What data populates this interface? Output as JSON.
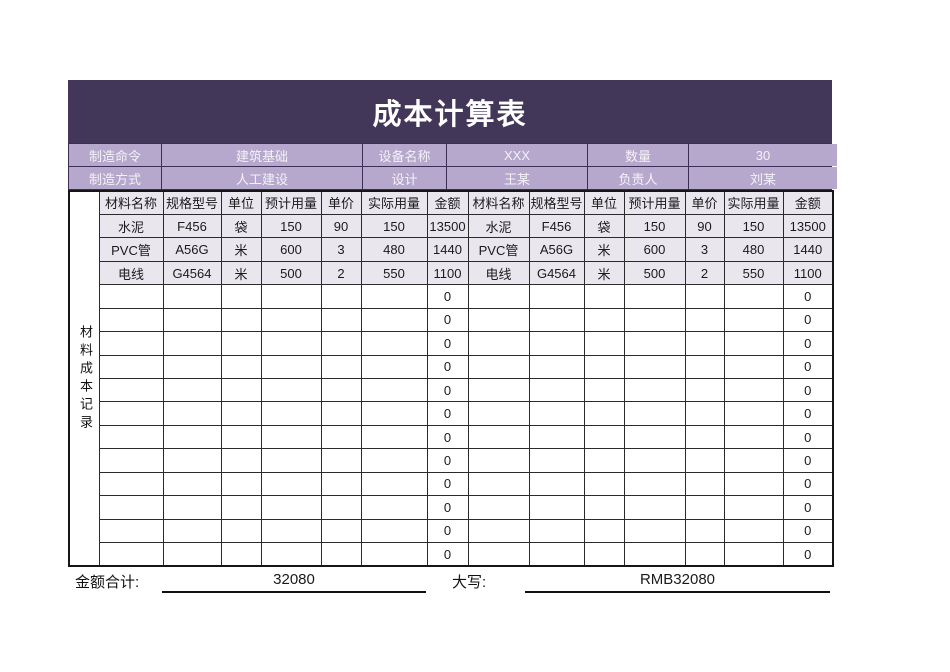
{
  "title": "成本计算表",
  "info": {
    "manufacture_order_label": "制造命令",
    "manufacture_order": "建筑基础",
    "equipment_name_label": "设备名称",
    "equipment_name": "XXX",
    "quantity_label": "数量",
    "quantity": "30",
    "manufacture_method_label": "制造方式",
    "manufacture_method": "人工建设",
    "design_label": "设计",
    "design": "王某",
    "manager_label": "负责人",
    "manager": "刘某"
  },
  "table": {
    "side_label": "材料成本记录",
    "columns": [
      "材料名称",
      "规格型号",
      "单位",
      "预计用量",
      "单价",
      "实际用量",
      "金额"
    ],
    "rows": [
      [
        "水泥",
        "F456",
        "袋",
        "150",
        "90",
        "150",
        "13500",
        "水泥",
        "F456",
        "袋",
        "150",
        "90",
        "150",
        "13500"
      ],
      [
        "PVC管",
        "A56G",
        "米",
        "600",
        "3",
        "480",
        "1440",
        "PVC管",
        "A56G",
        "米",
        "600",
        "3",
        "480",
        "1440"
      ],
      [
        "电线",
        "G4564",
        "米",
        "500",
        "2",
        "550",
        "1100",
        "电线",
        "G4564",
        "米",
        "500",
        "2",
        "550",
        "1100"
      ],
      [
        "",
        "",
        "",
        "",
        "",
        "",
        "0",
        "",
        "",
        "",
        "",
        "",
        "",
        "0"
      ],
      [
        "",
        "",
        "",
        "",
        "",
        "",
        "0",
        "",
        "",
        "",
        "",
        "",
        "",
        "0"
      ],
      [
        "",
        "",
        "",
        "",
        "",
        "",
        "0",
        "",
        "",
        "",
        "",
        "",
        "",
        "0"
      ],
      [
        "",
        "",
        "",
        "",
        "",
        "",
        "0",
        "",
        "",
        "",
        "",
        "",
        "",
        "0"
      ],
      [
        "",
        "",
        "",
        "",
        "",
        "",
        "0",
        "",
        "",
        "",
        "",
        "",
        "",
        "0"
      ],
      [
        "",
        "",
        "",
        "",
        "",
        "",
        "0",
        "",
        "",
        "",
        "",
        "",
        "",
        "0"
      ],
      [
        "",
        "",
        "",
        "",
        "",
        "",
        "0",
        "",
        "",
        "",
        "",
        "",
        "",
        "0"
      ],
      [
        "",
        "",
        "",
        "",
        "",
        "",
        "0",
        "",
        "",
        "",
        "",
        "",
        "",
        "0"
      ],
      [
        "",
        "",
        "",
        "",
        "",
        "",
        "0",
        "",
        "",
        "",
        "",
        "",
        "",
        "0"
      ],
      [
        "",
        "",
        "",
        "",
        "",
        "",
        "0",
        "",
        "",
        "",
        "",
        "",
        "",
        "0"
      ],
      [
        "",
        "",
        "",
        "",
        "",
        "",
        "0",
        "",
        "",
        "",
        "",
        "",
        "",
        "0"
      ],
      [
        "",
        "",
        "",
        "",
        "",
        "",
        "0",
        "",
        "",
        "",
        "",
        "",
        "",
        "0"
      ]
    ]
  },
  "footer": {
    "total_label": "金额合计:",
    "total_value": "32080",
    "capital_label": "大写:",
    "capital_value": "RMB32080"
  },
  "colors": {
    "title_bg": "#423659",
    "info_bg": "#b5a8cc",
    "row_highlight": "#e9e6ee",
    "border": "#2b2b2b"
  }
}
